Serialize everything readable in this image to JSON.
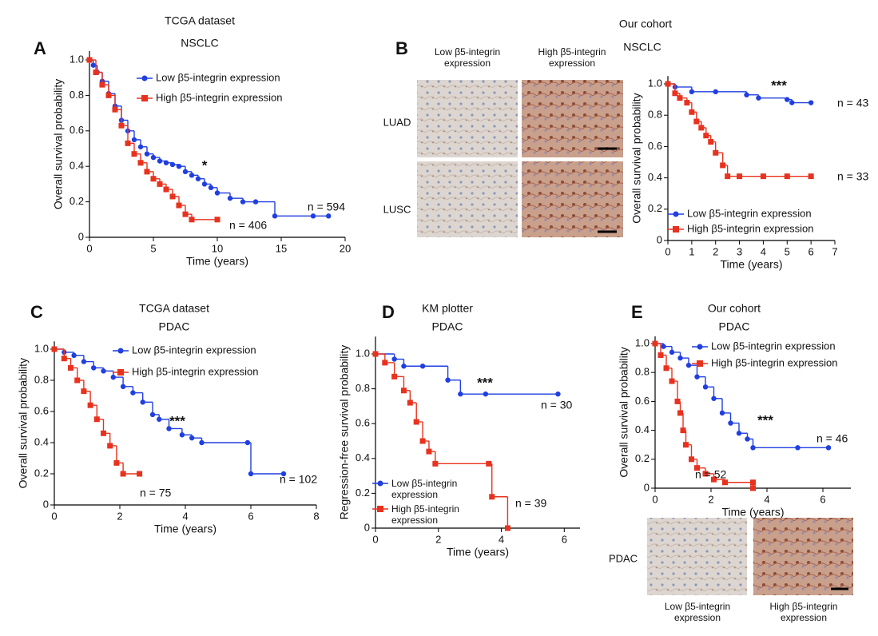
{
  "chart_data": [
    {
      "type": "km",
      "panel": "A",
      "title": "TCGA dataset",
      "subtitle": "NSCLC",
      "x_label": "Time (years)",
      "y_label": "Overall survival probability",
      "xlim": [
        0,
        20
      ],
      "xticks": [
        0,
        5,
        10,
        15,
        20
      ],
      "ylim": [
        0,
        1.05
      ],
      "yticks": [
        0,
        0.2,
        0.4,
        0.6,
        0.8,
        {
          "value": 1,
          "label": "1.0"
        }
      ],
      "series": [
        {
          "name": "Low β5-integrin expression",
          "color": "#1f3fe0",
          "marker": "circle",
          "x": [
            0,
            0.3,
            0.6,
            1,
            1.5,
            2,
            2.5,
            3,
            3.5,
            4,
            4.5,
            5,
            5.5,
            6,
            6.5,
            7,
            7.5,
            8,
            8.5,
            9,
            9.5,
            10,
            11,
            12,
            13,
            14.5,
            17.5,
            18.7
          ],
          "values": [
            1.0,
            0.97,
            0.93,
            0.88,
            0.81,
            0.74,
            0.66,
            0.6,
            0.55,
            0.51,
            0.47,
            0.45,
            0.43,
            0.42,
            0.41,
            0.4,
            0.37,
            0.35,
            0.33,
            0.3,
            0.28,
            0.25,
            0.22,
            0.2,
            0.2,
            0.12,
            0.12,
            0.12
          ]
        },
        {
          "name": "High β5-integrin expression",
          "color": "#e8321e",
          "marker": "square",
          "x": [
            0,
            0.5,
            1,
            1.5,
            2,
            2.5,
            3,
            3.5,
            4,
            4.5,
            5,
            5.5,
            6,
            6.5,
            7,
            7.5,
            8,
            10
          ],
          "values": [
            1.0,
            0.93,
            0.86,
            0.8,
            0.72,
            0.63,
            0.53,
            0.47,
            0.42,
            0.37,
            0.33,
            0.3,
            0.27,
            0.23,
            0.18,
            0.13,
            0.1,
            0.1
          ]
        }
      ],
      "annotations": [
        "*",
        "n = 594",
        "n = 406"
      ]
    },
    {
      "type": "km",
      "panel": "B",
      "title": "Our cohort",
      "subtitle": "NSCLC",
      "x_label": "Time (years)",
      "y_label": "Overall survival probability",
      "xlim": [
        0,
        7
      ],
      "xticks": [
        0,
        1,
        2,
        3,
        4,
        5,
        6,
        7
      ],
      "ylim": [
        0,
        1.05
      ],
      "yticks": [
        0,
        0.2,
        0.4,
        0.6,
        0.8,
        {
          "value": 1,
          "label": "1.0"
        }
      ],
      "series": [
        {
          "name": "Low β5-integrin expression",
          "color": "#1f3fe0",
          "marker": "circle",
          "x": [
            0,
            0.3,
            1,
            2,
            3.3,
            3.8,
            5,
            5.2,
            6
          ],
          "values": [
            1.0,
            0.98,
            0.95,
            0.95,
            0.93,
            0.91,
            0.9,
            0.88,
            0.88
          ]
        },
        {
          "name": "High β5-integrin expression",
          "color": "#e8321e",
          "marker": "square",
          "x": [
            0,
            0.3,
            0.5,
            0.8,
            1,
            1.2,
            1.4,
            1.6,
            1.8,
            2,
            2.3,
            2.5,
            3,
            4,
            5,
            6
          ],
          "values": [
            1.0,
            0.94,
            0.91,
            0.88,
            0.82,
            0.76,
            0.72,
            0.67,
            0.63,
            0.56,
            0.48,
            0.41,
            0.41,
            0.41,
            0.41,
            0.41
          ]
        }
      ],
      "annotations": [
        "***",
        "n = 43",
        "n = 33"
      ],
      "image_labels": {
        "columns": [
          "Low β5-integrin expression",
          "High β5-integrin expression"
        ],
        "rows": [
          "LUAD",
          "LUSC"
        ]
      }
    },
    {
      "type": "km",
      "panel": "C",
      "title": "TCGA dataset",
      "subtitle": "PDAC",
      "x_label": "Time (years)",
      "y_label": "Overall survival probability",
      "xlim": [
        0,
        8
      ],
      "xticks": [
        0,
        2,
        4,
        6,
        8
      ],
      "ylim": [
        0,
        1.05
      ],
      "yticks": [
        0,
        0.2,
        0.4,
        0.6,
        0.8,
        {
          "value": 1,
          "label": "1.0"
        }
      ],
      "series": [
        {
          "name": "Low β5-integrin expression",
          "color": "#1f3fe0",
          "marker": "circle",
          "x": [
            0,
            0.3,
            0.6,
            0.9,
            1.2,
            1.5,
            1.8,
            2.1,
            2.4,
            2.7,
            3,
            3.2,
            3.5,
            3.9,
            4.2,
            4.5,
            5.9,
            6,
            7
          ],
          "values": [
            1.0,
            0.98,
            0.96,
            0.92,
            0.88,
            0.86,
            0.82,
            0.76,
            0.72,
            0.66,
            0.58,
            0.55,
            0.49,
            0.45,
            0.43,
            0.4,
            0.4,
            0.2,
            0.2
          ]
        },
        {
          "name": "High β5-integrin expression",
          "color": "#e8321e",
          "marker": "square",
          "x": [
            0,
            0.3,
            0.5,
            0.7,
            0.9,
            1.1,
            1.3,
            1.5,
            1.7,
            1.9,
            2.1,
            2.6
          ],
          "values": [
            1.0,
            0.94,
            0.88,
            0.8,
            0.73,
            0.64,
            0.55,
            0.46,
            0.38,
            0.27,
            0.2,
            0.2
          ]
        }
      ],
      "annotations": [
        "***",
        "n = 102",
        "n = 75"
      ]
    },
    {
      "type": "km",
      "panel": "D",
      "title": "KM plotter",
      "subtitle": "PDAC",
      "x_label": "Time (years)",
      "y_label": "Regression-free survival probability",
      "xlim": [
        0,
        6.5
      ],
      "xticks": [
        0,
        2,
        4,
        6
      ],
      "ylim": [
        0,
        1.1
      ],
      "yticks": [
        0,
        0.2,
        0.4,
        0.6,
        0.8,
        {
          "value": 1,
          "label": "1.0"
        }
      ],
      "series": [
        {
          "name": "Low β5-integrin expression",
          "color": "#1f3fe0",
          "marker": "circle",
          "x": [
            0,
            0.6,
            0.9,
            1.5,
            2.3,
            2.7,
            3.5,
            5.8
          ],
          "values": [
            1.0,
            0.97,
            0.93,
            0.93,
            0.85,
            0.77,
            0.77,
            0.77
          ]
        },
        {
          "name": "High β5-integrin expression",
          "color": "#e8321e",
          "marker": "square",
          "x": [
            0,
            0.3,
            0.6,
            0.9,
            1.1,
            1.3,
            1.5,
            1.7,
            1.9,
            3.6,
            3.7,
            4.2
          ],
          "values": [
            1.0,
            0.95,
            0.87,
            0.79,
            0.72,
            0.61,
            0.5,
            0.44,
            0.37,
            0.37,
            0.18,
            0
          ]
        }
      ],
      "annotations": [
        "***",
        "n = 30",
        "n = 39"
      ]
    },
    {
      "type": "km",
      "panel": "E",
      "title": "Our cohort",
      "subtitle": "PDAC",
      "x_label": "Time (years)",
      "y_label": "Overall survival probability",
      "xlim": [
        0,
        7
      ],
      "xticks": [
        0,
        2,
        4,
        6
      ],
      "ylim": [
        0,
        1.05
      ],
      "yticks": [
        0,
        0.2,
        0.4,
        0.6,
        0.8,
        {
          "value": 1,
          "label": "1.0"
        }
      ],
      "series": [
        {
          "name": "Low β5-integrin expression",
          "color": "#1f3fe0",
          "marker": "circle",
          "x": [
            0,
            0.3,
            0.6,
            0.9,
            1.2,
            1.5,
            1.8,
            2.1,
            2.4,
            2.7,
            3,
            3.3,
            3.5,
            5.1,
            6.2
          ],
          "values": [
            1.0,
            0.98,
            0.94,
            0.9,
            0.85,
            0.77,
            0.7,
            0.62,
            0.52,
            0.45,
            0.38,
            0.34,
            0.28,
            0.28,
            0.28
          ]
        },
        {
          "name": "High β5-integrin expression",
          "color": "#e8321e",
          "marker": "square",
          "x": [
            0,
            0.2,
            0.4,
            0.6,
            0.8,
            0.9,
            1,
            1.1,
            1.3,
            1.5,
            1.8,
            2.1,
            2.5,
            3.5,
            3.5
          ],
          "values": [
            1.0,
            0.92,
            0.83,
            0.74,
            0.6,
            0.52,
            0.4,
            0.3,
            0.2,
            0.14,
            0.1,
            0.06,
            0.04,
            0.04,
            0
          ]
        }
      ],
      "annotations": [
        "***",
        "n = 46",
        "n = 52"
      ],
      "image_labels": {
        "columns": [
          "Low β5-integrin expression",
          "High β5-integrin expression"
        ],
        "rows": [
          "PDAC"
        ]
      }
    }
  ]
}
